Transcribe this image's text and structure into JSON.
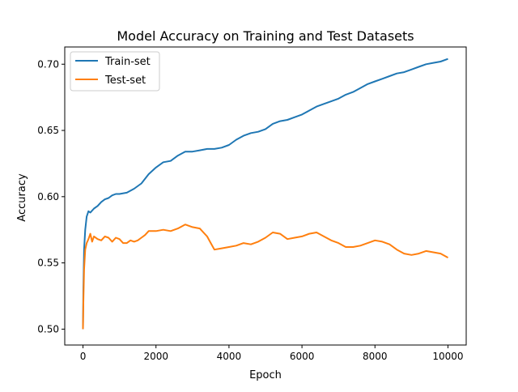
{
  "chart_data": {
    "type": "line",
    "title": "Model Accuracy on Training and Test Datasets",
    "xlabel": "Epoch",
    "ylabel": "Accuracy",
    "xlim": [
      -500,
      10500
    ],
    "ylim": [
      0.488,
      0.713
    ],
    "xticks": [
      0,
      2000,
      4000,
      6000,
      8000,
      10000
    ],
    "xtick_labels": [
      "0",
      "2000",
      "4000",
      "6000",
      "8000",
      "10000"
    ],
    "yticks": [
      0.5,
      0.55,
      0.6,
      0.65,
      0.7
    ],
    "ytick_labels": [
      "0.50",
      "0.55",
      "0.60",
      "0.65",
      "0.70"
    ],
    "grid": false,
    "legend": "upper-left",
    "series": [
      {
        "name": "Train-set",
        "color": "#1f77b4",
        "x": [
          0,
          10,
          30,
          60,
          100,
          150,
          200,
          300,
          400,
          500,
          600,
          700,
          800,
          900,
          1000,
          1200,
          1400,
          1600,
          1800,
          2000,
          2200,
          2400,
          2600,
          2800,
          3000,
          3200,
          3400,
          3600,
          3800,
          4000,
          4200,
          4400,
          4600,
          4800,
          5000,
          5200,
          5400,
          5600,
          5800,
          6000,
          6200,
          6400,
          6600,
          6800,
          7000,
          7200,
          7400,
          7600,
          7800,
          8000,
          8200,
          8400,
          8600,
          8800,
          9000,
          9200,
          9400,
          9600,
          9800,
          10000
        ],
        "y": [
          0.5,
          0.53,
          0.56,
          0.575,
          0.585,
          0.589,
          0.588,
          0.591,
          0.593,
          0.596,
          0.598,
          0.599,
          0.601,
          0.602,
          0.602,
          0.603,
          0.606,
          0.61,
          0.617,
          0.622,
          0.626,
          0.627,
          0.631,
          0.634,
          0.634,
          0.635,
          0.636,
          0.636,
          0.637,
          0.639,
          0.643,
          0.646,
          0.648,
          0.649,
          0.651,
          0.655,
          0.657,
          0.658,
          0.66,
          0.662,
          0.665,
          0.668,
          0.67,
          0.672,
          0.674,
          0.677,
          0.679,
          0.682,
          0.685,
          0.687,
          0.689,
          0.691,
          0.693,
          0.694,
          0.696,
          0.698,
          0.7,
          0.701,
          0.702,
          0.704
        ]
      },
      {
        "name": "Test-set",
        "color": "#ff7f0e",
        "x": [
          0,
          10,
          30,
          60,
          100,
          150,
          200,
          250,
          300,
          400,
          500,
          600,
          700,
          800,
          900,
          1000,
          1100,
          1200,
          1300,
          1400,
          1500,
          1600,
          1700,
          1800,
          2000,
          2200,
          2400,
          2600,
          2800,
          3000,
          3200,
          3400,
          3500,
          3600,
          3800,
          4000,
          4200,
          4400,
          4600,
          4800,
          5000,
          5200,
          5400,
          5600,
          5800,
          6000,
          6200,
          6400,
          6600,
          6800,
          7000,
          7200,
          7400,
          7600,
          7800,
          8000,
          8200,
          8400,
          8600,
          8800,
          9000,
          9200,
          9400,
          9600,
          9800,
          10000
        ],
        "y": [
          0.5,
          0.52,
          0.545,
          0.56,
          0.565,
          0.568,
          0.572,
          0.566,
          0.57,
          0.568,
          0.567,
          0.57,
          0.569,
          0.566,
          0.569,
          0.568,
          0.565,
          0.565,
          0.567,
          0.566,
          0.567,
          0.569,
          0.571,
          0.574,
          0.574,
          0.575,
          0.574,
          0.576,
          0.579,
          0.577,
          0.576,
          0.57,
          0.565,
          0.56,
          0.561,
          0.562,
          0.563,
          0.565,
          0.564,
          0.566,
          0.569,
          0.573,
          0.572,
          0.568,
          0.569,
          0.57,
          0.572,
          0.573,
          0.57,
          0.567,
          0.565,
          0.562,
          0.562,
          0.563,
          0.565,
          0.567,
          0.566,
          0.564,
          0.56,
          0.557,
          0.556,
          0.557,
          0.559,
          0.558,
          0.557,
          0.554
        ]
      }
    ]
  }
}
